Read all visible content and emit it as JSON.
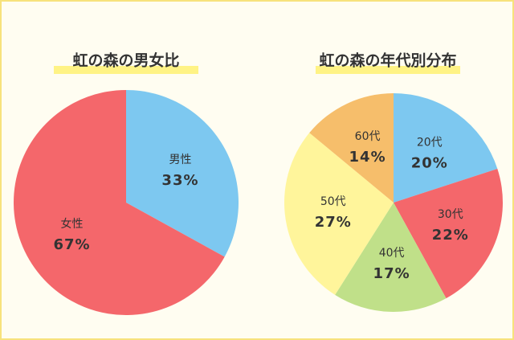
{
  "chart_data": [
    {
      "type": "pie",
      "title": "虹の森の男女比",
      "categories": [
        "男性",
        "女性"
      ],
      "values": [
        33,
        67
      ],
      "value_labels": [
        "33%",
        "67%"
      ],
      "colors": [
        "#7dc8f0",
        "#f4676b"
      ]
    },
    {
      "type": "pie",
      "title": "虹の森の年代別分布",
      "categories": [
        "20代",
        "30代",
        "40代",
        "50代",
        "60代"
      ],
      "values": [
        20,
        22,
        17,
        27,
        14
      ],
      "value_labels": [
        "20%",
        "22%",
        "17%",
        "27%",
        "14%"
      ],
      "colors": [
        "#7dc8f0",
        "#f4676b",
        "#c0e089",
        "#fff59b",
        "#f6be6b"
      ]
    }
  ]
}
